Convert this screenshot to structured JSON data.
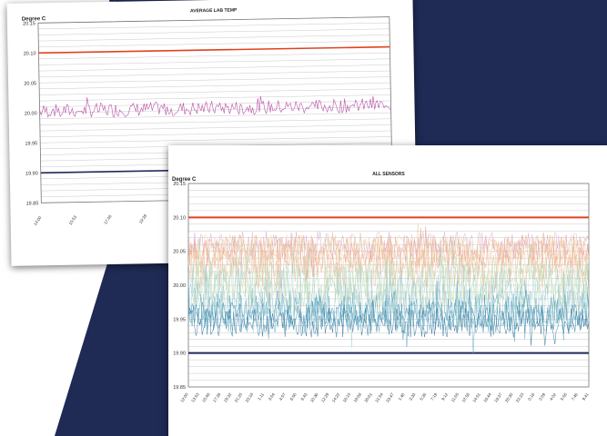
{
  "colors": {
    "navy": "#1f2a55",
    "limit_high": "#e0421e",
    "limit_low": "#20265e",
    "avg_series": "#b0409c"
  },
  "chart_data": [
    {
      "type": "line",
      "title": "AVERAGE LAB TEMP",
      "ylabel": "Degree C",
      "ylim": [
        19.85,
        20.15
      ],
      "yticks": [
        "20.15",
        "20.10",
        "20.05",
        "20.00",
        "19.95",
        "19.90",
        "19.85"
      ],
      "xtick_labels": [
        "14:00",
        "15:53",
        "17:46",
        "19:39",
        "21:32",
        "23:25",
        "1:18",
        "3:11",
        "5:04",
        "6:57",
        "8:50"
      ],
      "limit_lines": [
        {
          "y": 20.1,
          "color": "#e0421e"
        },
        {
          "y": 19.9,
          "color": "#20265e"
        }
      ],
      "grid": true,
      "series": [
        {
          "color": "#b0409c",
          "mean": 20.003,
          "amplitude": 0.012,
          "points": 260,
          "seed": 7
        }
      ]
    },
    {
      "type": "line",
      "title": "ALL SENSORS",
      "ylabel": "Degree C",
      "ylim": [
        19.85,
        20.15
      ],
      "yticks": [
        "20.15",
        "20.10",
        "20.05",
        "20.00",
        "19.95",
        "19.90",
        "19.85"
      ],
      "xtick_labels": [
        "12:00",
        "13:53",
        "15:46",
        "17:39",
        "19:32",
        "21:25",
        "23:18",
        "1:11",
        "3:04",
        "4:57",
        "6:50",
        "8:43",
        "10:36",
        "12:29",
        "14:22",
        "16:15",
        "18:08",
        "20:01",
        "21:54",
        "23:47",
        "1:40",
        "3:33",
        "5:26",
        "7:19",
        "9:12",
        "11:05",
        "12:58",
        "14:51",
        "16:44",
        "18:37",
        "20:30",
        "22:23",
        "0:16",
        "2:09",
        "4:02",
        "5:55",
        "7:48",
        "9:41"
      ],
      "limit_lines": [
        {
          "y": 20.1,
          "color": "#e0421e"
        },
        {
          "y": 19.9,
          "color": "#20265e"
        }
      ],
      "grid": true,
      "series": [
        {
          "color": "#f2a07a",
          "mean": 20.05,
          "amplitude": 0.025,
          "points": 320,
          "seed": 11
        },
        {
          "color": "#e8c09a",
          "mean": 20.04,
          "amplitude": 0.03,
          "points": 320,
          "seed": 13
        },
        {
          "color": "#d9a6c8",
          "mean": 20.06,
          "amplitude": 0.02,
          "points": 320,
          "seed": 17
        },
        {
          "color": "#f0b090",
          "mean": 20.03,
          "amplitude": 0.035,
          "points": 320,
          "seed": 19
        },
        {
          "color": "#bcd9a8",
          "mean": 20.0,
          "amplitude": 0.04,
          "points": 320,
          "seed": 23
        },
        {
          "color": "#c8e0c0",
          "mean": 20.01,
          "amplitude": 0.035,
          "points": 320,
          "seed": 29
        },
        {
          "color": "#a8d0d8",
          "mean": 19.99,
          "amplitude": 0.04,
          "points": 320,
          "seed": 31
        },
        {
          "color": "#9ac4c8",
          "mean": 19.97,
          "amplitude": 0.035,
          "points": 320,
          "seed": 37
        },
        {
          "color": "#3a8fb0",
          "mean": 19.955,
          "amplitude": 0.025,
          "points": 320,
          "seed": 41
        },
        {
          "color": "#2a6f96",
          "mean": 19.945,
          "amplitude": 0.022,
          "points": 320,
          "seed": 43
        },
        {
          "color": "#5aa8c4",
          "mean": 19.96,
          "amplitude": 0.03,
          "points": 320,
          "seed": 47
        },
        {
          "color": "#e9d2a8",
          "mean": 20.055,
          "amplitude": 0.02,
          "points": 320,
          "seed": 53
        }
      ]
    }
  ]
}
